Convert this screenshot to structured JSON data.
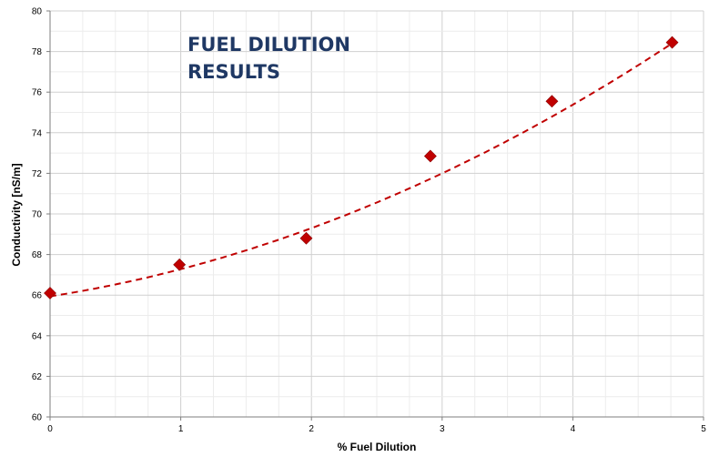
{
  "chart_data": {
    "type": "scatter",
    "title_lines": [
      "FUEL DILUTION",
      "RESULTS"
    ],
    "xlabel": "% Fuel Dilution",
    "ylabel": "Conductivity [nS/m]",
    "xlim": [
      0,
      5
    ],
    "ylim": [
      60,
      80
    ],
    "xticks": [
      0,
      1,
      2,
      3,
      4,
      5
    ],
    "yticks": [
      60,
      62,
      64,
      66,
      68,
      70,
      72,
      74,
      76,
      78,
      80
    ],
    "x_minor_step": 0.25,
    "y_minor_step": 1,
    "grid": true,
    "series": [
      {
        "x": [
          0.0,
          0.99,
          1.96,
          2.91,
          3.84,
          4.76
        ],
        "y": [
          66.1,
          67.5,
          68.8,
          72.85,
          75.55,
          78.45
        ],
        "marker": "diamond",
        "color": "#c00000"
      }
    ],
    "trendline": {
      "type": "polynomial",
      "style": "dashed",
      "color": "#c00000",
      "x_range": [
        0,
        4.76
      ],
      "coefficients": [
        65.94,
        1.0,
        0.34
      ]
    },
    "title_color": "#1f3864"
  }
}
